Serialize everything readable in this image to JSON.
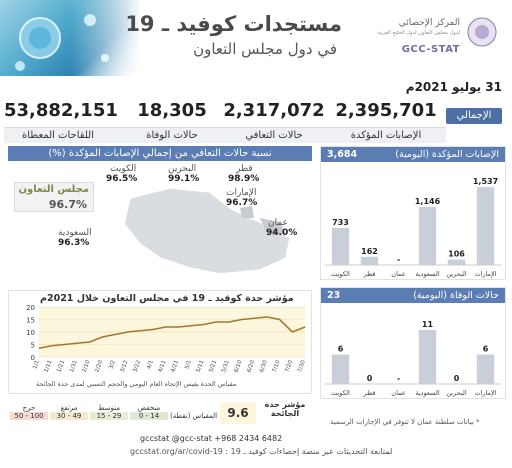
{
  "header": {
    "title": "مستجدات كوفيد ـ 19",
    "subtitle": "في دول مجلس التعاون",
    "logo_ar": "المركز الإحصائي",
    "logo_ar2": "لدول مجلس التعاون لدول الخليج العربية",
    "logo_en": "GCC-STAT"
  },
  "date": "31 يوليو 2021م",
  "totals": {
    "badge": "الإجمالي",
    "confirmed": {
      "value": "2,395,701",
      "label": "الإصابات المؤكدة"
    },
    "recovered": {
      "value": "2,317,072",
      "label": "حالات التعافي"
    },
    "deaths": {
      "value": "18,305",
      "label": "حالات الوفاة"
    },
    "vaccines": {
      "value": "53,882,151",
      "label": "اللقاحات المعطاة"
    }
  },
  "map": {
    "title": "نسبة حالات التعافي من إجمالي الإصابات المؤكدة (%)",
    "gcc": {
      "label": "مجلس التعاون",
      "value": "96.7%"
    },
    "countries": [
      {
        "name": "الكويت",
        "value": "96.5%"
      },
      {
        "name": "البحرين",
        "value": "99.1%"
      },
      {
        "name": "قطر",
        "value": "98.9%"
      },
      {
        "name": "الإمارات",
        "value": "96.7%"
      },
      {
        "name": "عمان",
        "value": "94.0%"
      },
      {
        "name": "السعودية",
        "value": "96.3%"
      }
    ]
  },
  "cases_panel": {
    "title": "الإصابات المؤكدة (اليومية)",
    "total": "3,684"
  },
  "deaths_panel": {
    "title": "حالات الوفاة (اليومية)",
    "total": "23"
  },
  "trend": {
    "title": "مؤشر حدة كوفيد ـ 19 في مجلس التعاون خلال 2021م",
    "note": "مقياس الحدة يقيس الإتجاه العام اليومي والحجم النسبي لمدى حدة الجائحة",
    "indicator_label": "مؤشر حدة الجائحة",
    "indicator_value": "9.6",
    "scale_label": "المقياس (نقطة)"
  },
  "legend": [
    {
      "name": "منخفض",
      "range": "0 - 14",
      "color": "#dfe8d0"
    },
    {
      "name": "متوسط",
      "range": "15 - 29",
      "color": "#e9ecd5"
    },
    {
      "name": "مرتفع",
      "range": "30 - 49",
      "color": "#f4ead3"
    },
    {
      "name": "حرج",
      "range": "50 - 100",
      "color": "#f6d9cf"
    }
  ],
  "footer": {
    "contacts": "gccstat   @gcc-stat   +968 2434 6482",
    "line": "لمتابعة التحديثات عبر منصة إحصاءات كوفيد ـ 19 :   gccstat.org/ar/covid-19",
    "note": "* بيانات سلطنة عمان لا تتوفر في الإجازات الرسمية"
  },
  "chart_data": [
    {
      "type": "bar",
      "title": "الإصابات المؤكدة (اليومية)",
      "categories": [
        "الكويت",
        "قطر",
        "عمان",
        "السعودية",
        "البحرين",
        "الإمارات"
      ],
      "values": [
        733,
        162,
        null,
        1146,
        106,
        1537
      ],
      "value_labels": [
        "733",
        "162",
        "-",
        "1,146",
        "106",
        "1,537"
      ],
      "ylim": [
        0,
        1600
      ]
    },
    {
      "type": "bar",
      "title": "حالات الوفاة (اليومية)",
      "categories": [
        "الكويت",
        "قطر",
        "عمان",
        "السعودية",
        "البحرين",
        "الإمارات"
      ],
      "values": [
        6,
        0,
        null,
        11,
        0,
        6
      ],
      "value_labels": [
        "6",
        "0",
        "-",
        "11",
        "0",
        "6"
      ],
      "ylim": [
        0,
        12
      ]
    },
    {
      "type": "line",
      "title": "مؤشر حدة كوفيد ـ 19 في مجلس التعاون خلال 2021م",
      "x": [
        "1/1",
        "1/11",
        "1/21",
        "1/31",
        "2/10",
        "2/20",
        "3/2",
        "3/12",
        "3/22",
        "4/1",
        "4/11",
        "4/21",
        "5/1",
        "5/11",
        "5/21",
        "5/31",
        "6/10",
        "6/20",
        "6/30",
        "7/10",
        "7/20",
        "7/30"
      ],
      "y_ticks": [
        0,
        5,
        10,
        15,
        20
      ],
      "ylim": [
        0,
        20
      ],
      "series": [
        {
          "values": [
            3.5,
            4.5,
            5,
            5.5,
            6,
            8,
            9,
            10,
            10.5,
            11,
            12,
            12,
            12.5,
            13,
            14,
            14,
            15,
            15.5,
            16,
            15,
            10,
            12
          ]
        }
      ]
    }
  ]
}
